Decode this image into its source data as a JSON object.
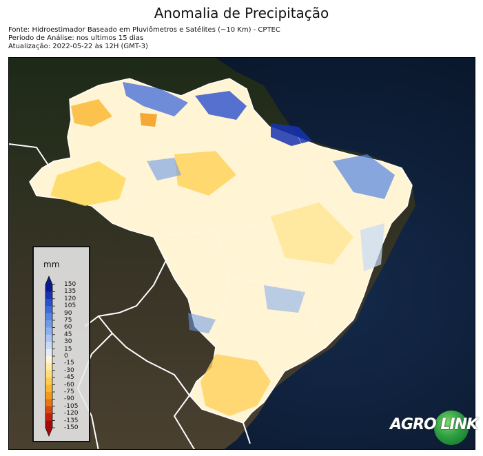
{
  "title": "Anomalia de Precipitação",
  "source": "Fonte: Hidroestimador Baseado em Pluviômetros e Satélites (~10 Km) - CPTEC",
  "period": "Período de Análise: nos ultimos 15 dias",
  "updated": "Atualização: 2022-05-22 às 12H (GMT-3)",
  "legend": {
    "unit": "mm",
    "ticks": [
      "150",
      "135",
      "120",
      "105",
      "90",
      "75",
      "60",
      "45",
      "30",
      "15",
      "0",
      "-15",
      "-30",
      "-45",
      "-60",
      "-75",
      "-90",
      "-105",
      "-120",
      "-135",
      "-150"
    ],
    "colors": [
      "#0a1a8c",
      "#1733b0",
      "#2a4fcc",
      "#3e6ad9",
      "#5585e3",
      "#6e9ae8",
      "#8cb0ee",
      "#aac5f2",
      "#c8daf7",
      "#e3edfb",
      "#ffffff",
      "#fff6d6",
      "#ffeaa6",
      "#ffdd7a",
      "#ffcb4d",
      "#fbb52c",
      "#f39a18",
      "#e77512",
      "#d4490f",
      "#c0210c",
      "#a6070a"
    ]
  },
  "logo": {
    "text_left": "AGRO",
    "text_right": "LINK"
  },
  "colors": {
    "ocean": "#0b1a33",
    "land_dark": "#1e2818",
    "anomaly_neutral": "#fff4d4",
    "border": "#ffffff"
  }
}
